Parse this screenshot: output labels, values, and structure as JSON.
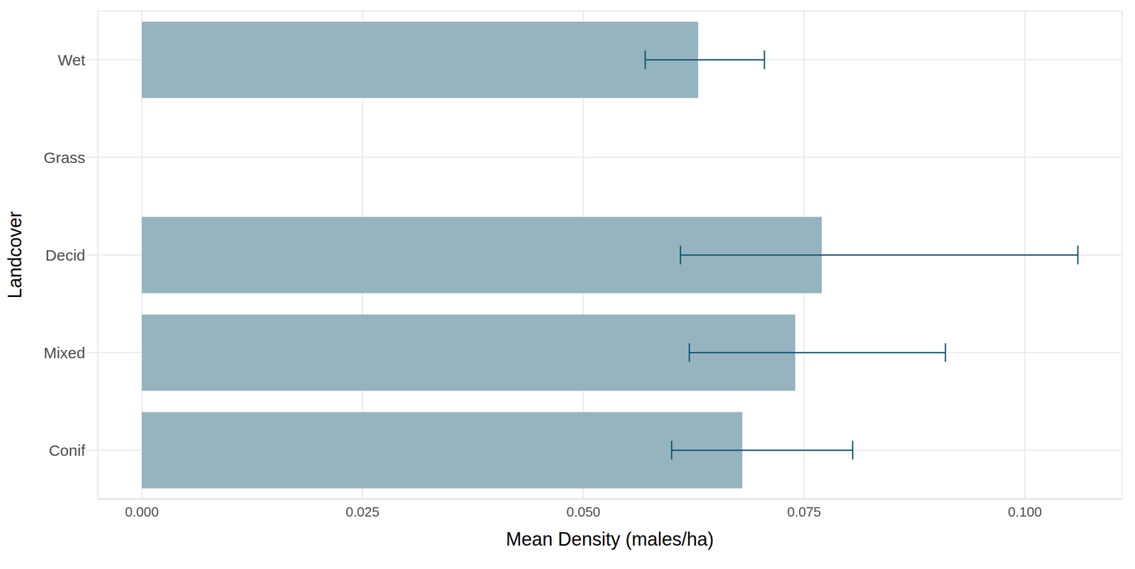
{
  "chart_data": {
    "type": "bar",
    "orientation": "horizontal",
    "x_label": "Mean Density (males/ha)",
    "y_label": "Landcover",
    "categories": [
      "Wet",
      "Grass",
      "Decid",
      "Mixed",
      "Conif"
    ],
    "values": [
      0.063,
      0,
      0.077,
      0.074,
      0.068
    ],
    "error_low": [
      0.057,
      0,
      0.061,
      0.062,
      0.06
    ],
    "error_high": [
      0.0705,
      0,
      0.106,
      0.091,
      0.0805
    ],
    "color": "#96b4bf",
    "xlim": [
      -0.005,
      0.111
    ],
    "xticks": [
      {
        "value": 0,
        "label": "0.000"
      },
      {
        "value": 0.025,
        "label": "0.025"
      },
      {
        "value": 0.05,
        "label": "0.050"
      },
      {
        "value": 0.075,
        "label": "0.075"
      },
      {
        "value": 0.1,
        "label": "0.100"
      }
    ],
    "grid": true
  }
}
